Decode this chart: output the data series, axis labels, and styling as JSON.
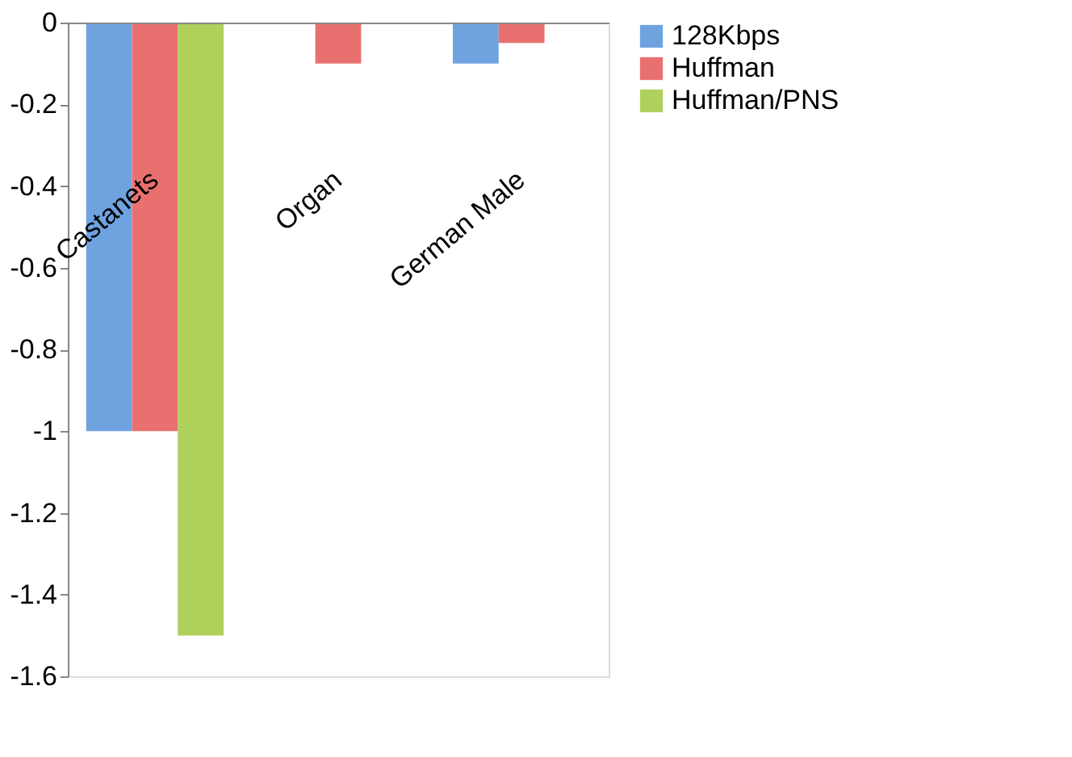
{
  "chart_data": {
    "type": "bar",
    "categories": [
      "Castanets",
      "Organ",
      "German Male"
    ],
    "series": [
      {
        "name": "128Kbps",
        "color": "#6fa3e0",
        "values": [
          -1,
          0,
          -0.1
        ]
      },
      {
        "name": "Huffman",
        "color": "#e8716f",
        "values": [
          -1,
          -0.1,
          -0.05
        ]
      },
      {
        "name": "Huffman/PNS",
        "color": "#afd05a",
        "values": [
          -1.5,
          0,
          0
        ]
      }
    ],
    "ylim": [
      -1.6,
      0
    ],
    "yticks": [
      0,
      -0.2,
      -0.4,
      -0.6,
      -0.8,
      -1,
      -1.2,
      -1.4,
      -1.6
    ],
    "grid": false,
    "legend": "right"
  }
}
